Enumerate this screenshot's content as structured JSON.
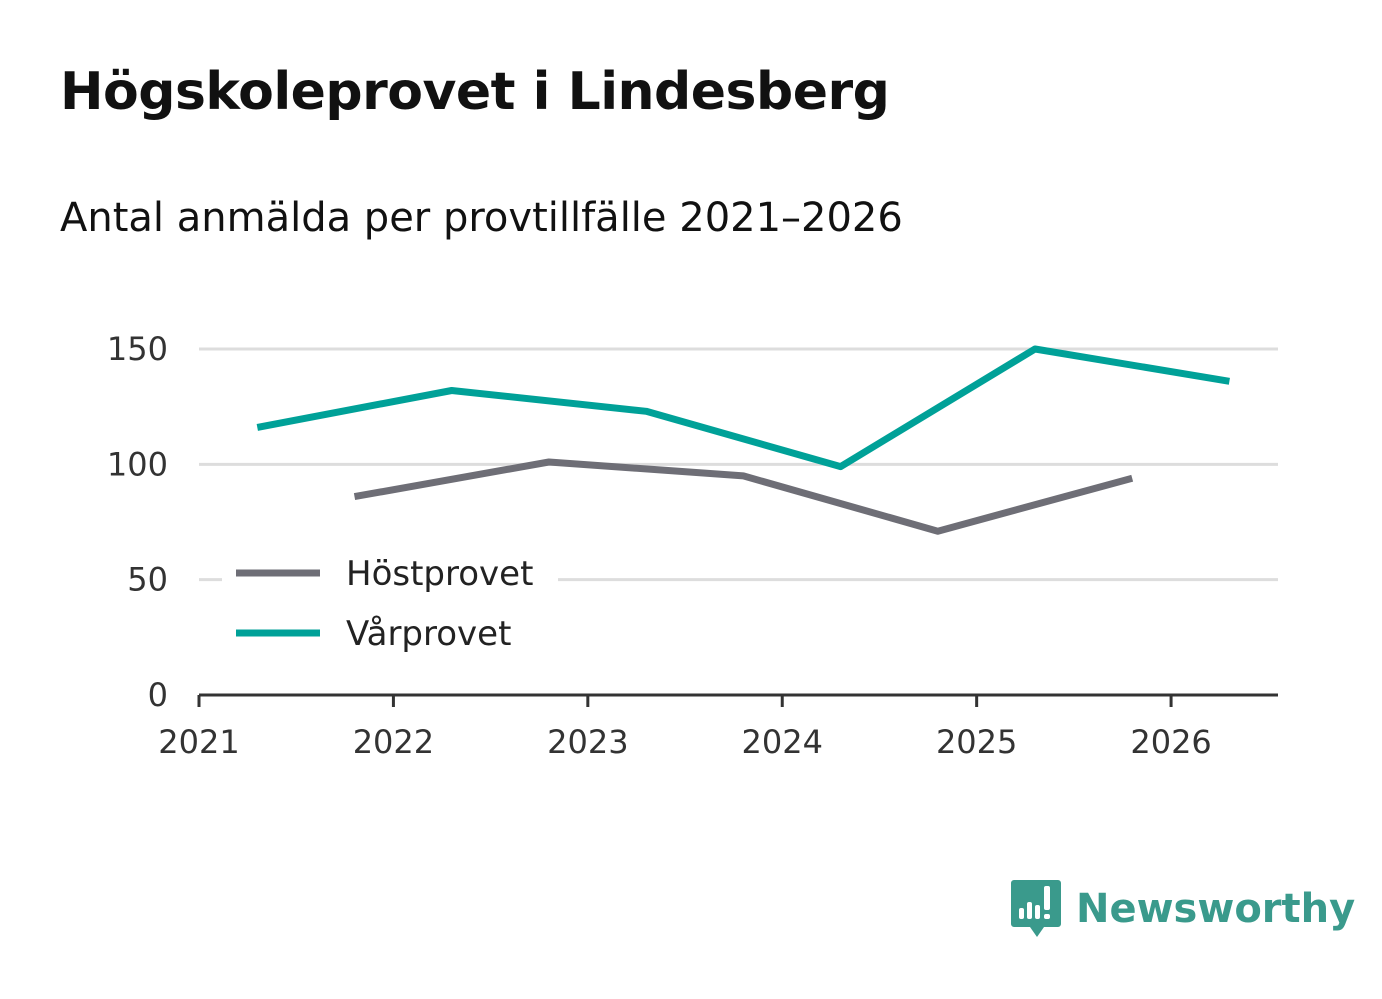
{
  "header": {
    "title": "Högskoleprovet i Lindesberg",
    "subtitle": "Antal anmälda per provtillfälle 2021–2026"
  },
  "brand": {
    "name": "Newsworthy",
    "icon": "newsworthy-logo-icon",
    "color": "#3a9a8c"
  },
  "chart_data": {
    "type": "line",
    "title": "Högskoleprovet i Lindesberg",
    "subtitle": "Antal anmälda per provtillfälle 2021–2026",
    "xlabel": "",
    "ylabel": "",
    "xlim": [
      2021,
      2026.55
    ],
    "ylim": [
      0,
      150
    ],
    "x_ticks": [
      2021,
      2022,
      2023,
      2024,
      2025,
      2026
    ],
    "x_tick_labels": [
      "2021",
      "2022",
      "2023",
      "2024",
      "2025",
      "2026"
    ],
    "y_ticks": [
      0,
      50,
      100,
      150
    ],
    "y_tick_labels": [
      "0",
      "50",
      "100",
      "150"
    ],
    "grid": true,
    "legend_position": "bottom-left",
    "series": [
      {
        "name": "Höstprovet",
        "color": "#6e6e76",
        "x": [
          2021.8,
          2022.8,
          2023.8,
          2024.8,
          2025.8
        ],
        "values": [
          86,
          101,
          95,
          71,
          94
        ]
      },
      {
        "name": "Vårprovet",
        "color": "#00a198",
        "x": [
          2021.3,
          2022.3,
          2023.3,
          2024.3,
          2025.3,
          2026.3
        ],
        "values": [
          116,
          132,
          123,
          99,
          150,
          136
        ]
      }
    ]
  }
}
